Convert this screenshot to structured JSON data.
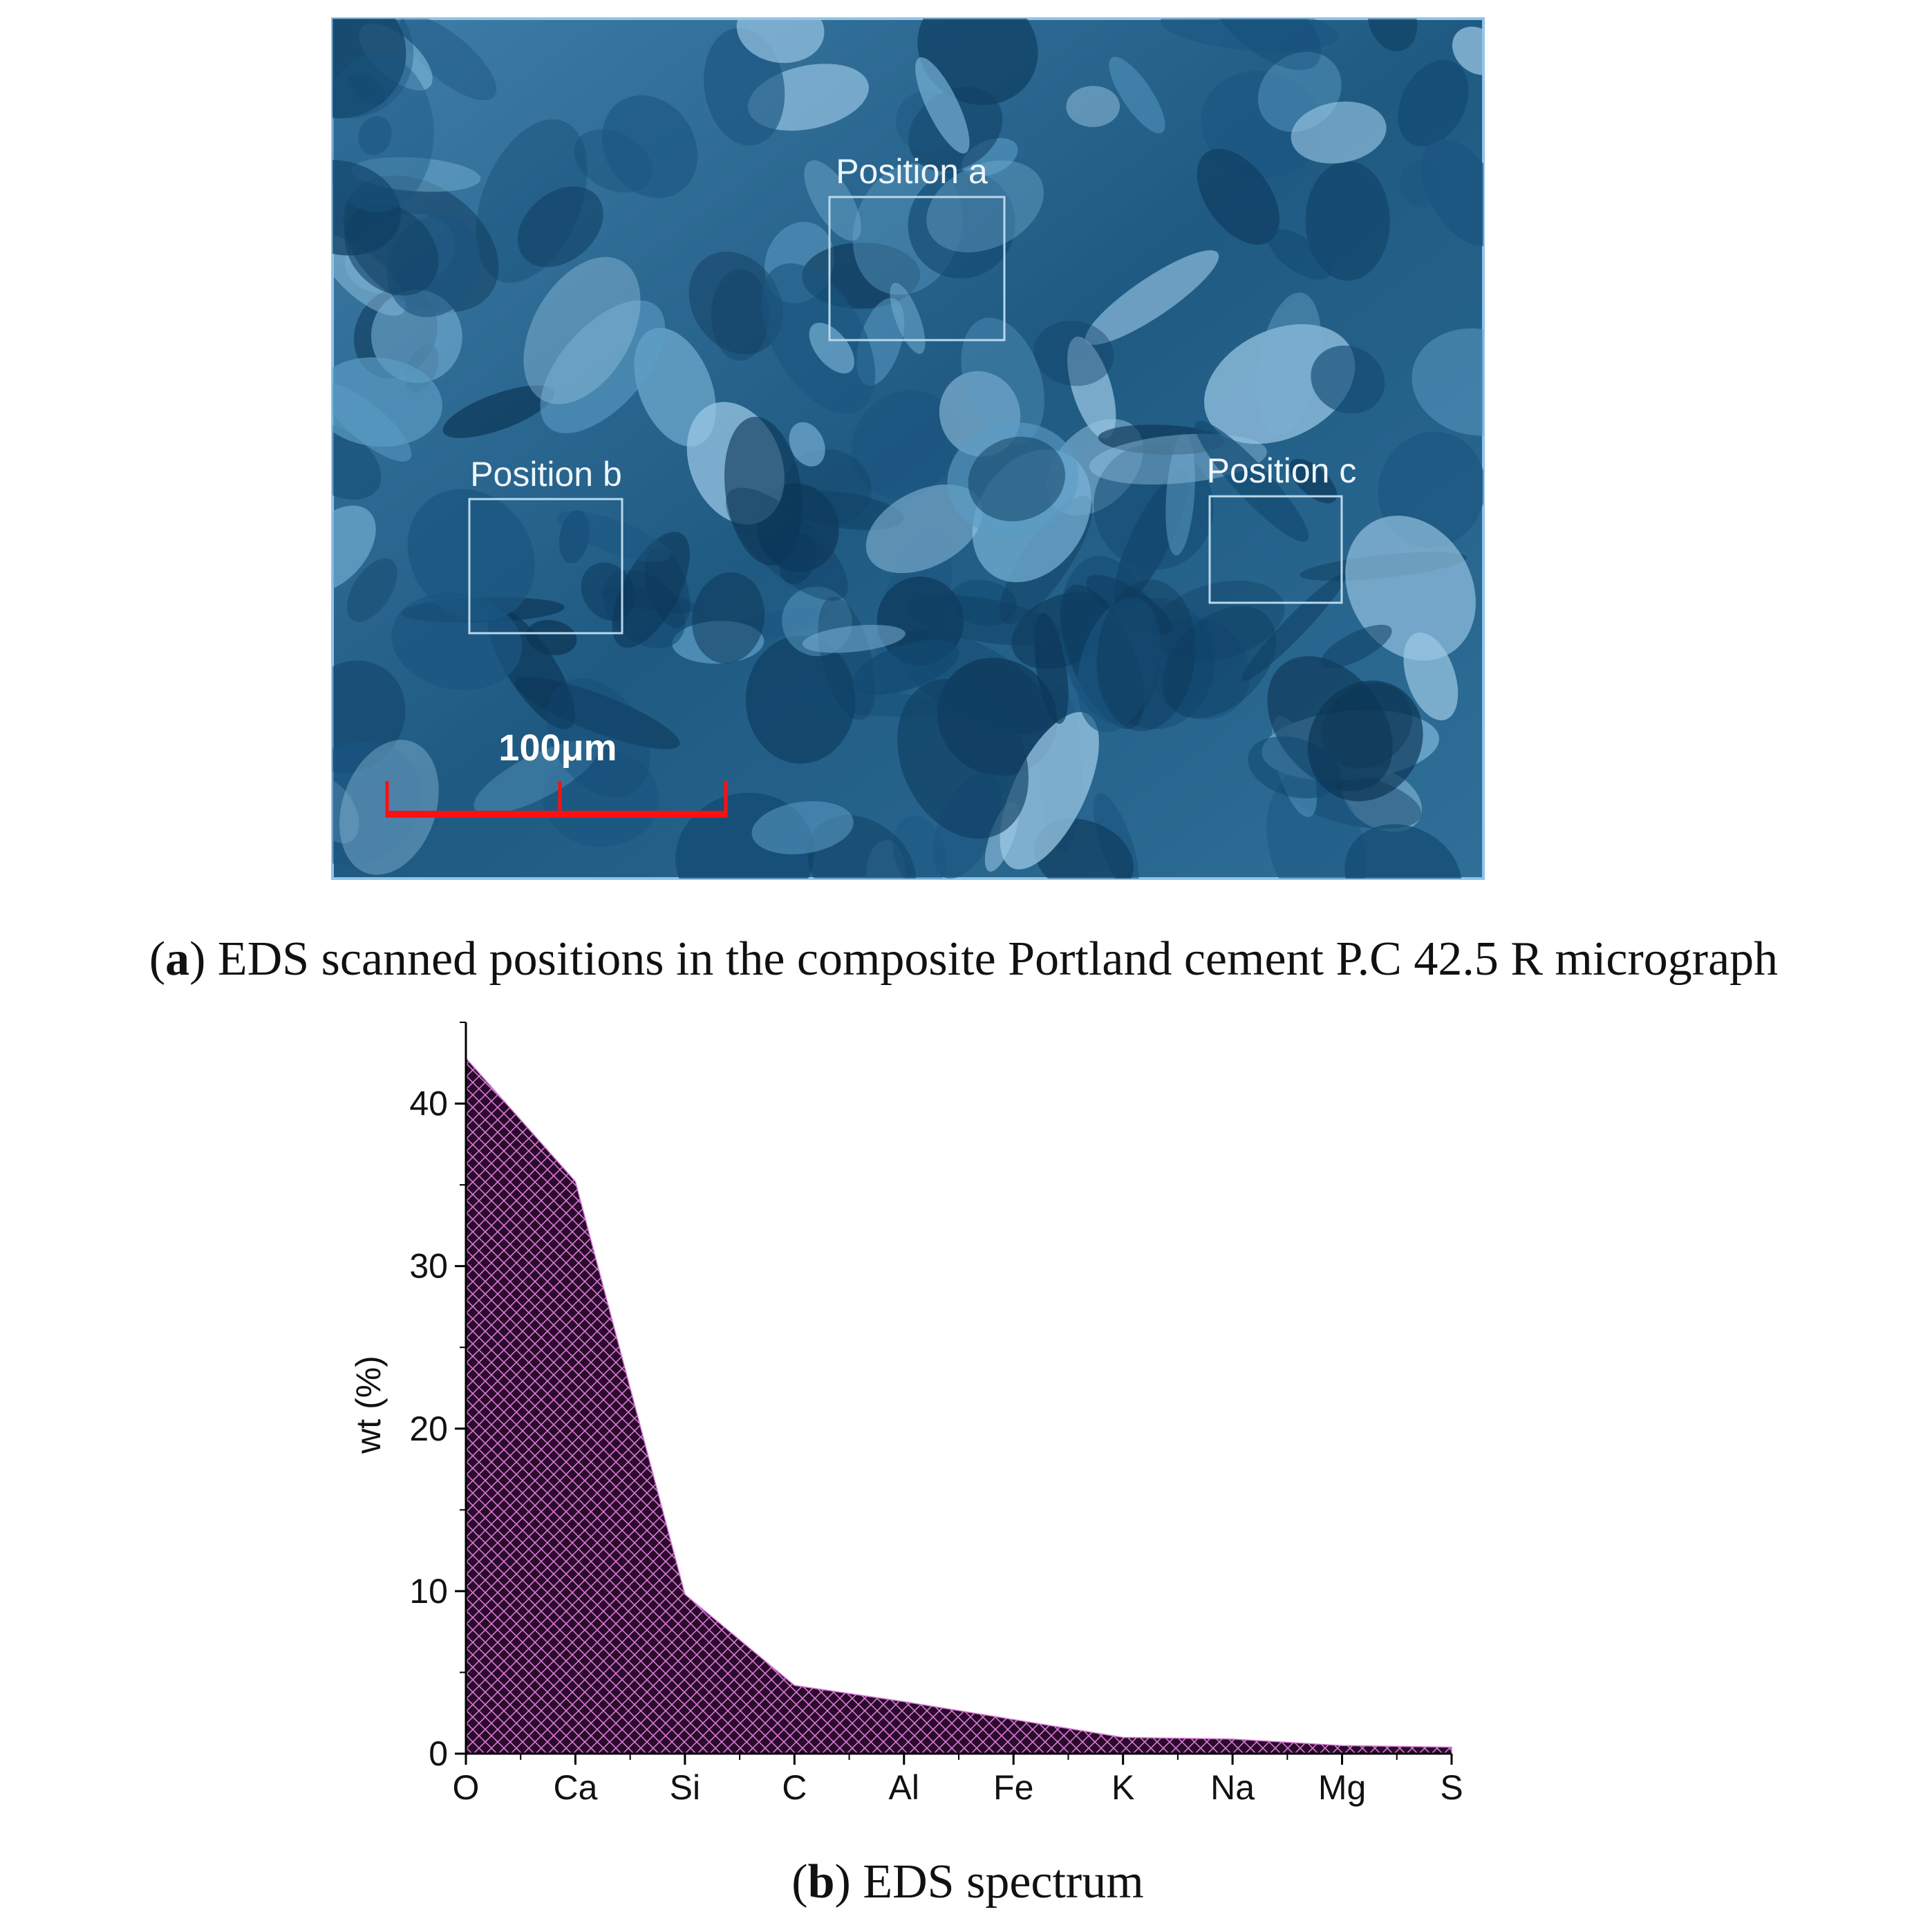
{
  "micrograph": {
    "labels": [
      "Position a",
      "Position b",
      "Position c"
    ],
    "scale_bar": "100μm",
    "caption": {
      "open": "(",
      "label": "a",
      "text": ") EDS scanned positions in the composite Portland cement P.C 42.5 R micrograph"
    }
  },
  "chart_data": {
    "type": "area",
    "ylabel": "wt (%)",
    "categories": [
      "O",
      "Ca",
      "Si",
      "C",
      "Al",
      "Fe",
      "K",
      "Na",
      "Mg",
      "S"
    ],
    "values": [
      42.8,
      35.2,
      9.8,
      4.2,
      3.2,
      2.1,
      1.0,
      0.9,
      0.5,
      0.4
    ],
    "color": "#2b0a2b",
    "hatch_color": "#d77ad7",
    "ylim": [
      0,
      45
    ],
    "yticks": [
      0,
      10,
      20,
      30,
      40
    ],
    "caption": {
      "open": "(",
      "label": "b",
      "text": ") EDS spectrum"
    }
  }
}
